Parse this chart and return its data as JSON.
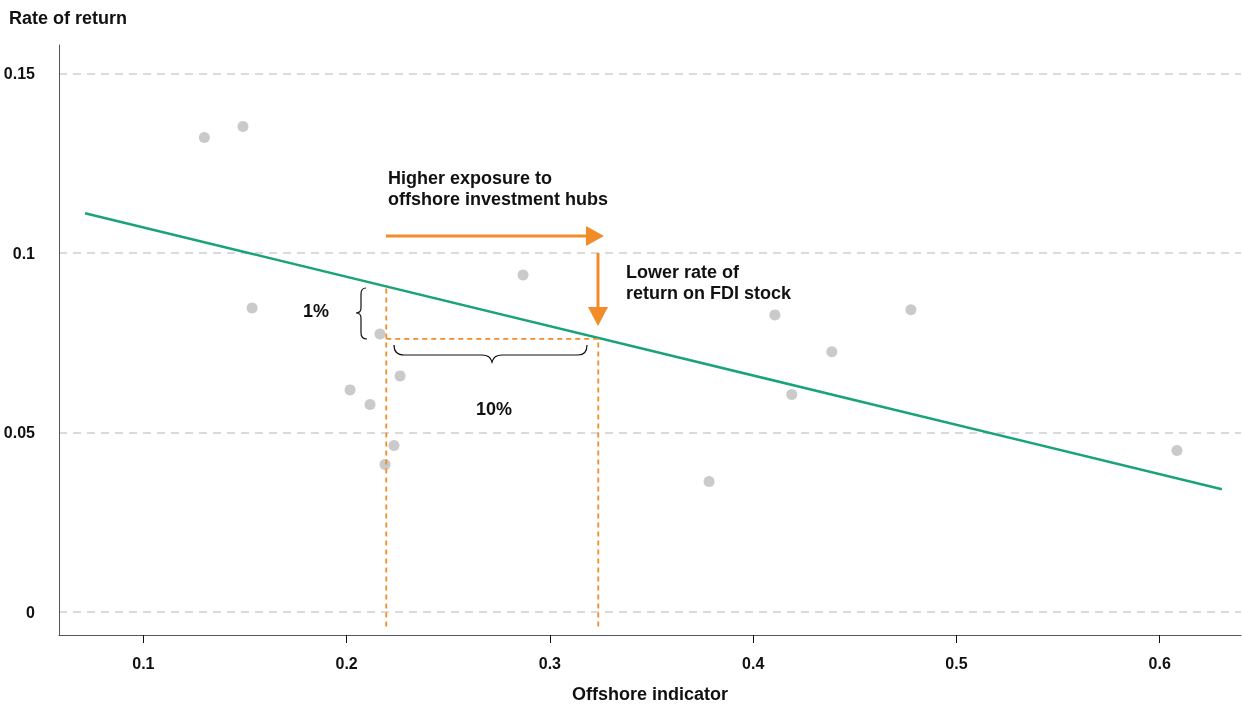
{
  "chart_data": {
    "type": "scatter",
    "xlabel": "Offshore indicator",
    "ylabel": "Rate of return",
    "xlim": [
      0.0585,
      0.64
    ],
    "ylim": [
      -0.0064,
      0.158
    ],
    "xticks": [
      0.1,
      0.2,
      0.3,
      0.4,
      0.5,
      0.6
    ],
    "yticks": [
      0,
      0.05,
      0.1,
      0.15
    ],
    "grid": "y",
    "annotations": [
      "Higher exposure to\noffshore investment hubs",
      "Lower rate of\nreturn on FDI stock",
      "1%",
      "10%"
    ],
    "series": [
      {
        "color": "#bdbdbd",
        "marker": "circle",
        "x": [
          0.13,
          0.149,
          0.1535,
          0.2164,
          0.2017,
          0.2115,
          0.2263,
          0.2233,
          0.2189,
          0.2868,
          0.3783,
          0.4107,
          0.419,
          0.4387,
          0.4776,
          0.6085
        ],
        "values": [
          0.1322,
          0.1353,
          0.0847,
          0.0775,
          0.0619,
          0.0578,
          0.0658,
          0.0464,
          0.0411,
          0.0939,
          0.0364,
          0.0828,
          0.0606,
          0.0725,
          0.0842,
          0.045
        ]
      },
      {
        "type": "line",
        "color": "#1aa37a",
        "marker": "none",
        "line_style": "solid",
        "x": [
          0.0713,
          0.6306
        ],
        "values": [
          0.1111,
          0.0342
        ]
      },
      {
        "type": "line",
        "color": "#f28c28",
        "marker": "none",
        "line_style": "dashed",
        "x": [
          0.2195,
          0.2195
        ],
        "values": [
          -0.004,
          0.0907
        ]
      },
      {
        "type": "line",
        "color": "#f28c28",
        "marker": "none",
        "line_style": "dashed",
        "x": [
          0.2195,
          0.3238
        ],
        "values": [
          0.0761,
          0.0761
        ]
      },
      {
        "type": "line",
        "color": "#f28c28",
        "marker": "none",
        "line_style": "dashed",
        "x": [
          0.3238,
          0.3238
        ],
        "values": [
          -0.004,
          0.0761
        ]
      }
    ]
  }
}
